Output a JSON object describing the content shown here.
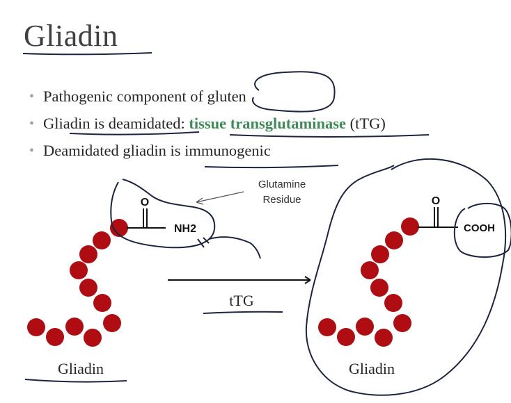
{
  "slide": {
    "title": "Gliadin",
    "bullets": [
      {
        "text": "Pathogenic component of gluten"
      },
      {
        "pre": "Gliadin is deamidated: ",
        "highlight": "tissue transglutaminase",
        "post": " (tTG)"
      },
      {
        "text": "Deamidated gliadin is immunogenic"
      }
    ]
  },
  "diagram": {
    "glutamine_label_line1": "Glutamine",
    "glutamine_label_line2": "Residue",
    "left": {
      "oxygen": "O",
      "group": "NH2",
      "caption": "Gliadin"
    },
    "right": {
      "oxygen": "O",
      "group": "COOH",
      "caption": "Gliadin"
    },
    "arrow_label": "tTG",
    "bead_color": "#b00d12",
    "highlight_color": "#3f8a56"
  }
}
